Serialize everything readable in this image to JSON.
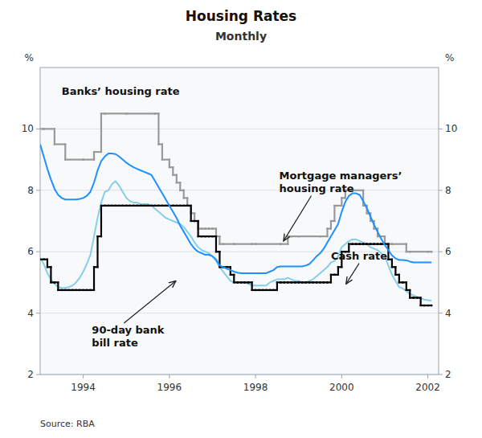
{
  "chart_data": {
    "type": "line",
    "title": "Housing Rates",
    "subtitle": "Monthly",
    "source": "Source: RBA",
    "ylabel": "%",
    "y2label": "%",
    "xlim": [
      1993.0,
      2002.25
    ],
    "xticks": [
      1994,
      1996,
      1998,
      2000,
      2002
    ],
    "ylim": [
      2,
      12
    ],
    "yticks": [
      2,
      4,
      6,
      8,
      10
    ],
    "y2lim": [
      2,
      12
    ],
    "y2ticks": [
      2,
      4,
      6,
      8,
      10
    ],
    "grid": true,
    "series": [
      {
        "type": "step",
        "color": "#000000",
        "x": [
          1993.0,
          1993.0833,
          1993.1667,
          1993.25,
          1993.3333,
          1993.4167,
          1993.5,
          1993.5833,
          1993.6667,
          1993.75,
          1993.8333,
          1993.9167,
          1994.0,
          1994.0833,
          1994.1667,
          1994.25,
          1994.3333,
          1994.4167,
          1994.5,
          1994.5833,
          1994.6667,
          1994.75,
          1994.8333,
          1994.9167,
          1995.0,
          1995.0833,
          1995.1667,
          1995.25,
          1995.3333,
          1995.4167,
          1995.5,
          1995.5833,
          1995.6667,
          1995.75,
          1995.8333,
          1995.9167,
          1996.0,
          1996.0833,
          1996.1667,
          1996.25,
          1996.3333,
          1996.4167,
          1996.5,
          1996.5833,
          1996.6667,
          1996.75,
          1996.8333,
          1996.9167,
          1997.0,
          1997.0833,
          1997.1667,
          1997.25,
          1997.3333,
          1997.4167,
          1997.5,
          1997.5833,
          1997.6667,
          1997.75,
          1997.8333,
          1997.9167,
          1998.0,
          1998.0833,
          1998.1667,
          1998.25,
          1998.3333,
          1998.4167,
          1998.5,
          1998.5833,
          1998.6667,
          1998.75,
          1998.8333,
          1998.9167,
          1999.0,
          1999.0833,
          1999.1667,
          1999.25,
          1999.3333,
          1999.4167,
          1999.5,
          1999.5833,
          1999.6667,
          1999.75,
          1999.8333,
          1999.9167,
          2000.0,
          2000.0833,
          2000.1667,
          2000.25,
          2000.3333,
          2000.4167,
          2000.5,
          2000.5833,
          2000.6667,
          2000.75,
          2000.8333,
          2000.9167,
          2001.0,
          2001.0833,
          2001.1667,
          2001.25,
          2001.3333,
          2001.4167,
          2001.5,
          2001.5833,
          2001.6667,
          2001.75,
          2001.8333,
          2001.9167,
          2002.0,
          2002.0833
        ],
        "values": [
          5.75,
          5.75,
          5.5,
          5.0,
          5.0,
          4.75,
          4.75,
          4.75,
          4.75,
          4.75,
          4.75,
          4.75,
          4.75,
          4.75,
          4.75,
          5.5,
          6.5,
          7.5,
          7.5,
          7.5,
          7.5,
          7.5,
          7.5,
          7.5,
          7.5,
          7.5,
          7.5,
          7.5,
          7.5,
          7.5,
          7.5,
          7.5,
          7.5,
          7.5,
          7.5,
          7.5,
          7.5,
          7.5,
          7.5,
          7.5,
          7.5,
          7.5,
          7.0,
          7.0,
          6.5,
          6.5,
          6.5,
          6.5,
          6.5,
          6.0,
          5.5,
          5.5,
          5.5,
          5.25,
          5.0,
          5.0,
          5.0,
          5.0,
          5.0,
          4.75,
          4.75,
          4.75,
          4.75,
          4.75,
          4.75,
          4.75,
          5.0,
          5.0,
          5.0,
          5.0,
          5.0,
          5.0,
          5.0,
          5.0,
          5.0,
          5.0,
          5.0,
          5.0,
          5.0,
          5.0,
          5.0,
          5.25,
          5.25,
          5.5,
          6.0,
          6.0,
          6.25,
          6.25,
          6.25,
          6.25,
          6.25,
          6.25,
          6.25,
          6.25,
          6.25,
          6.25,
          6.25,
          5.75,
          5.5,
          5.25,
          5.0,
          5.0,
          4.75,
          4.5,
          4.5,
          4.5,
          4.25,
          4.25,
          4.25,
          4.25
        ]
      },
      {
        "type": "line",
        "color": "#87ceeb",
        "x": [
          1993.0,
          1993.0833,
          1993.1667,
          1993.25,
          1993.3333,
          1993.4167,
          1993.5,
          1993.5833,
          1993.6667,
          1993.75,
          1993.8333,
          1993.9167,
          1994.0,
          1994.0833,
          1994.1667,
          1994.25,
          1994.3333,
          1994.4167,
          1994.5,
          1994.5833,
          1994.6667,
          1994.75,
          1994.8333,
          1994.9167,
          1995.0,
          1995.0833,
          1995.1667,
          1995.25,
          1995.3333,
          1995.4167,
          1995.5,
          1995.5833,
          1995.6667,
          1995.75,
          1995.8333,
          1995.9167,
          1996.0,
          1996.0833,
          1996.1667,
          1996.25,
          1996.3333,
          1996.4167,
          1996.5,
          1996.5833,
          1996.6667,
          1996.75,
          1996.8333,
          1996.9167,
          1997.0,
          1997.0833,
          1997.1667,
          1997.25,
          1997.3333,
          1997.4167,
          1997.5,
          1997.5833,
          1997.6667,
          1997.75,
          1997.8333,
          1997.9167,
          1998.0,
          1998.0833,
          1998.1667,
          1998.25,
          1998.3333,
          1998.4167,
          1998.5,
          1998.5833,
          1998.6667,
          1998.75,
          1998.8333,
          1998.9167,
          1999.0,
          1999.0833,
          1999.1667,
          1999.25,
          1999.3333,
          1999.4167,
          1999.5,
          1999.5833,
          1999.6667,
          1999.75,
          1999.8333,
          1999.9167,
          2000.0,
          2000.0833,
          2000.1667,
          2000.25,
          2000.3333,
          2000.4167,
          2000.5,
          2000.5833,
          2000.6667,
          2000.75,
          2000.8333,
          2000.9167,
          2001.0,
          2001.0833,
          2001.1667,
          2001.25,
          2001.3333,
          2001.4167,
          2001.5,
          2001.5833,
          2001.6667,
          2001.75,
          2001.8333,
          2001.9167,
          2002.0,
          2002.0833
        ],
        "values": [
          5.8,
          5.6,
          5.3,
          5.1,
          4.95,
          4.85,
          4.82,
          4.82,
          4.85,
          4.9,
          5.0,
          5.15,
          5.35,
          5.6,
          5.9,
          6.5,
          7.1,
          7.6,
          7.95,
          8.0,
          8.2,
          8.3,
          8.15,
          7.95,
          7.75,
          7.65,
          7.6,
          7.6,
          7.55,
          7.55,
          7.55,
          7.5,
          7.4,
          7.3,
          7.2,
          7.1,
          7.05,
          7.0,
          6.95,
          6.9,
          6.8,
          6.65,
          6.5,
          6.3,
          6.15,
          6.05,
          6.0,
          5.95,
          5.85,
          5.7,
          5.5,
          5.35,
          5.2,
          5.05,
          5.0,
          5.0,
          5.0,
          5.0,
          4.95,
          4.9,
          4.9,
          4.9,
          4.9,
          4.9,
          5.0,
          5.05,
          5.1,
          5.1,
          5.1,
          5.15,
          5.1,
          5.05,
          5.05,
          5.0,
          5.0,
          5.05,
          5.1,
          5.2,
          5.3,
          5.4,
          5.5,
          5.65,
          5.7,
          5.85,
          6.15,
          6.25,
          6.35,
          6.4,
          6.4,
          6.35,
          6.3,
          6.25,
          6.15,
          6.1,
          6.05,
          5.95,
          5.85,
          5.55,
          5.25,
          5.05,
          4.85,
          4.8,
          4.72,
          4.62,
          4.58,
          4.52,
          4.48,
          4.44,
          4.42,
          4.4
        ]
      },
      {
        "type": "step",
        "color": "#999999",
        "x": [
          1993.0,
          1993.0833,
          1993.3333,
          1993.5833,
          1994.0,
          1994.25,
          1994.4167,
          1994.5,
          1995.0,
          1995.6667,
          1995.75,
          1995.8333,
          1996.0,
          1996.0833,
          1996.1667,
          1996.25,
          1996.3333,
          1996.4167,
          1996.5,
          1996.5833,
          1996.6667,
          1996.75,
          1996.8333,
          1996.9167,
          1997.0,
          1997.0833,
          1997.1667,
          1997.25,
          1997.5,
          1997.9167,
          1998.0,
          1998.5833,
          1998.75,
          1998.8333,
          1999.0,
          1999.5,
          1999.6667,
          1999.75,
          1999.8333,
          2000.0,
          2000.0833,
          2000.1667,
          2000.25,
          2000.5,
          2000.5833,
          2000.6667,
          2000.75,
          2000.8333,
          2001.0,
          2001.0833,
          2001.1667,
          2001.5,
          2001.5833,
          2002.0,
          2002.0833
        ],
        "values": [
          10.0,
          10.0,
          9.5,
          9.0,
          9.0,
          9.25,
          10.5,
          10.5,
          10.5,
          10.5,
          9.5,
          9.0,
          8.75,
          8.5,
          8.25,
          8.0,
          7.75,
          7.5,
          7.25,
          7.0,
          6.75,
          6.75,
          6.75,
          6.75,
          6.75,
          6.5,
          6.25,
          6.25,
          6.25,
          6.25,
          6.25,
          6.25,
          6.5,
          6.5,
          6.5,
          6.5,
          6.75,
          7.0,
          7.5,
          7.75,
          8.0,
          8.0,
          8.0,
          7.5,
          7.25,
          7.0,
          6.75,
          6.5,
          6.25,
          6.25,
          6.25,
          6.0,
          6.0,
          6.0,
          6.0
        ]
      },
      {
        "type": "line",
        "color": "#1e90ff",
        "x": [
          1993.0,
          1993.0833,
          1993.1667,
          1993.25,
          1993.3333,
          1993.4167,
          1993.5,
          1993.5833,
          1993.6667,
          1993.75,
          1993.8333,
          1993.9167,
          1994.0,
          1994.0833,
          1994.1667,
          1994.25,
          1994.3333,
          1994.4167,
          1994.5,
          1994.5833,
          1994.6667,
          1994.75,
          1994.8333,
          1994.9167,
          1995.0,
          1995.0833,
          1995.1667,
          1995.25,
          1995.3333,
          1995.4167,
          1995.5,
          1995.5833,
          1995.6667,
          1995.75,
          1995.8333,
          1995.9167,
          1996.0,
          1996.0833,
          1996.1667,
          1996.25,
          1996.3333,
          1996.4167,
          1996.5,
          1996.5833,
          1996.6667,
          1996.75,
          1996.8333,
          1996.9167,
          1997.0,
          1997.0833,
          1997.1667,
          1997.25,
          1997.3333,
          1997.4167,
          1997.5,
          1997.5833,
          1997.6667,
          1997.75,
          1997.8333,
          1997.9167,
          1998.0,
          1998.0833,
          1998.1667,
          1998.25,
          1998.3333,
          1998.4167,
          1998.5,
          1998.5833,
          1998.6667,
          1998.75,
          1998.8333,
          1998.9167,
          1999.0,
          1999.0833,
          1999.1667,
          1999.25,
          1999.3333,
          1999.4167,
          1999.5,
          1999.5833,
          1999.6667,
          1999.75,
          1999.8333,
          1999.9167,
          2000.0,
          2000.0833,
          2000.1667,
          2000.25,
          2000.3333,
          2000.4167,
          2000.5,
          2000.5833,
          2000.6667,
          2000.75,
          2000.8333,
          2000.9167,
          2001.0,
          2001.0833,
          2001.1667,
          2001.25,
          2001.3333,
          2001.4167,
          2001.5,
          2001.5833,
          2001.6667,
          2001.75,
          2001.8333,
          2001.9167,
          2002.0,
          2002.0833
        ],
        "values": [
          9.5,
          9.1,
          8.7,
          8.35,
          8.05,
          7.85,
          7.75,
          7.7,
          7.7,
          7.7,
          7.7,
          7.72,
          7.75,
          7.82,
          7.95,
          8.25,
          8.65,
          8.95,
          9.1,
          9.2,
          9.2,
          9.18,
          9.1,
          9.0,
          8.9,
          8.82,
          8.75,
          8.7,
          8.65,
          8.6,
          8.55,
          8.5,
          8.3,
          8.1,
          7.9,
          7.7,
          7.5,
          7.3,
          7.1,
          6.85,
          6.65,
          6.45,
          6.25,
          6.1,
          6.0,
          5.95,
          5.9,
          5.9,
          5.85,
          5.75,
          5.55,
          5.5,
          5.45,
          5.4,
          5.35,
          5.32,
          5.3,
          5.3,
          5.3,
          5.3,
          5.3,
          5.3,
          5.3,
          5.3,
          5.35,
          5.4,
          5.5,
          5.52,
          5.52,
          5.52,
          5.52,
          5.52,
          5.52,
          5.52,
          5.55,
          5.6,
          5.72,
          5.85,
          5.95,
          6.1,
          6.3,
          6.5,
          6.7,
          6.9,
          7.3,
          7.62,
          7.82,
          7.9,
          7.9,
          7.85,
          7.65,
          7.42,
          7.15,
          6.88,
          6.65,
          6.42,
          6.22,
          6.05,
          5.88,
          5.78,
          5.73,
          5.73,
          5.72,
          5.68,
          5.65,
          5.65,
          5.65,
          5.65,
          5.65,
          5.65
        ]
      }
    ],
    "annotations": [
      {
        "text": "Banks’ housing rate",
        "x": 1993.5,
        "y": 11.0
      },
      {
        "text": "Mortgage managers’\nhousing rate",
        "x": 1998.55,
        "y": 7.85,
        "arrow_x": 1998.65,
        "arrow_y": 6.35
      },
      {
        "text": "Cash rate",
        "x": 1999.75,
        "y": 5.65,
        "arrow_x": 2000.1,
        "arrow_y": 4.95
      },
      {
        "text": "90-day bank\nbill rate",
        "x": 1994.2,
        "y": 3.65,
        "arrow_x": 1996.15,
        "arrow_y": 5.05
      }
    ]
  }
}
